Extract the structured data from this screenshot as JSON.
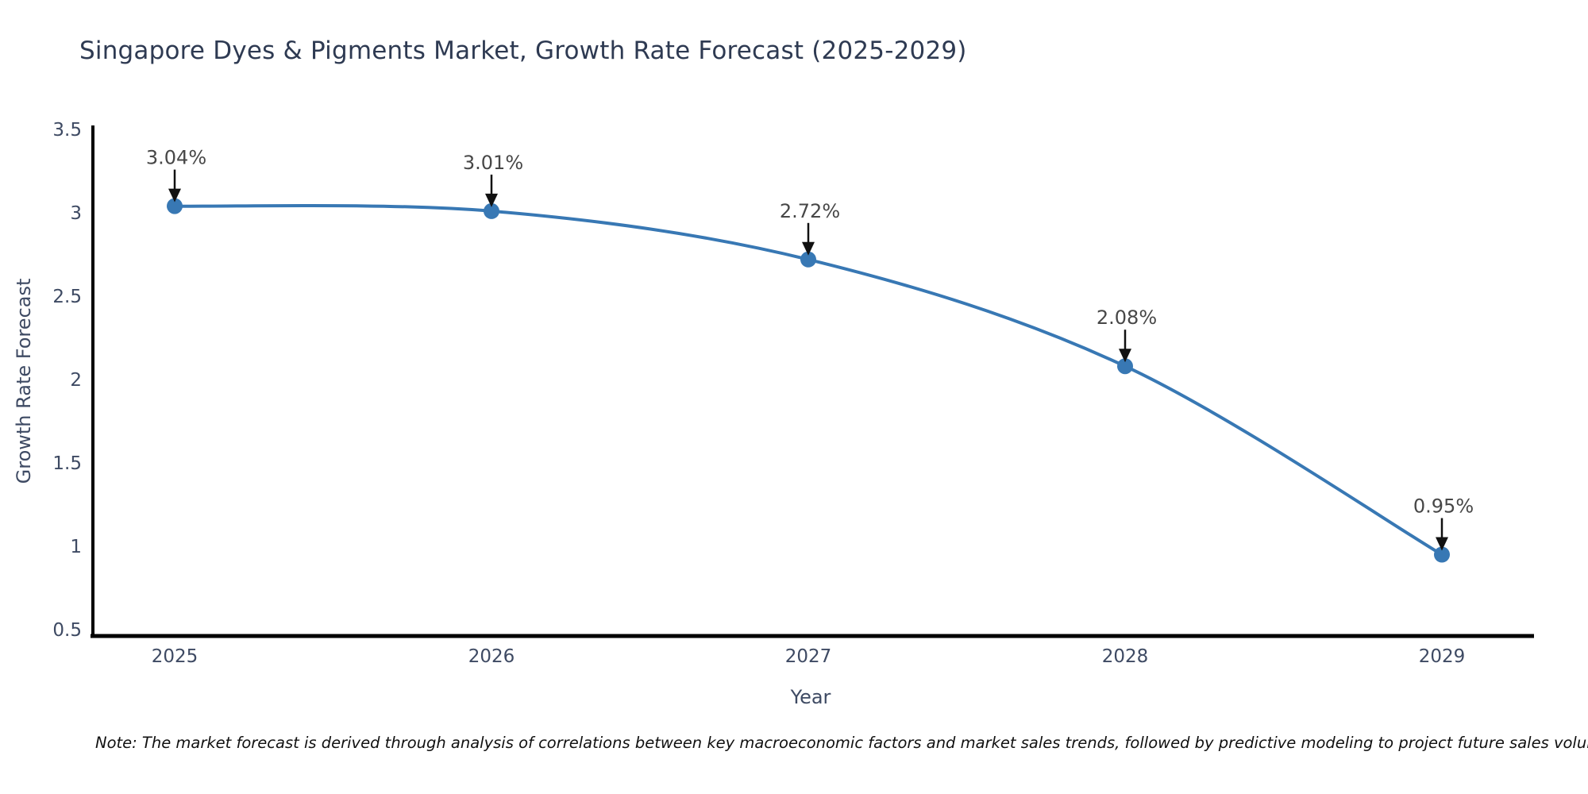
{
  "chart_data": {
    "type": "line",
    "title": "Singapore Dyes & Pigments Market, Growth Rate Forecast (2025-2029)",
    "xlabel": "Year",
    "ylabel": "Growth Rate Forecast",
    "x": [
      "2025",
      "2026",
      "2027",
      "2028",
      "2029"
    ],
    "values": [
      3.04,
      3.01,
      2.72,
      2.08,
      0.95
    ],
    "point_labels": [
      "3.04%",
      "3.01%",
      "2.72%",
      "2.08%",
      "0.95%"
    ],
    "ylim": [
      0.5,
      3.5
    ],
    "yticks": [
      3.5,
      3,
      2.5,
      2,
      1.5,
      1,
      0.5
    ],
    "ytick_labels": [
      "3.5",
      "3",
      "2.5",
      "2",
      "1.5",
      "1",
      "0.5"
    ],
    "grid": false,
    "legend": "none",
    "curve_style": "smooth-spline",
    "line_color": "#3878b4",
    "marker_color": "#3878b4",
    "arrow_color": "#111111",
    "annotation_text_color": "#474747",
    "tick_label_color": "#3e4a63",
    "axis_title_color": "#3e4a63",
    "title_color": "#2e3a52",
    "spine_color": "#000000"
  },
  "note": "Note: The market forecast is derived through analysis of correlations between key macroeconomic factors and market sales trends, followed by predictive modeling to project future sales volumes.",
  "note_color": "#111111"
}
